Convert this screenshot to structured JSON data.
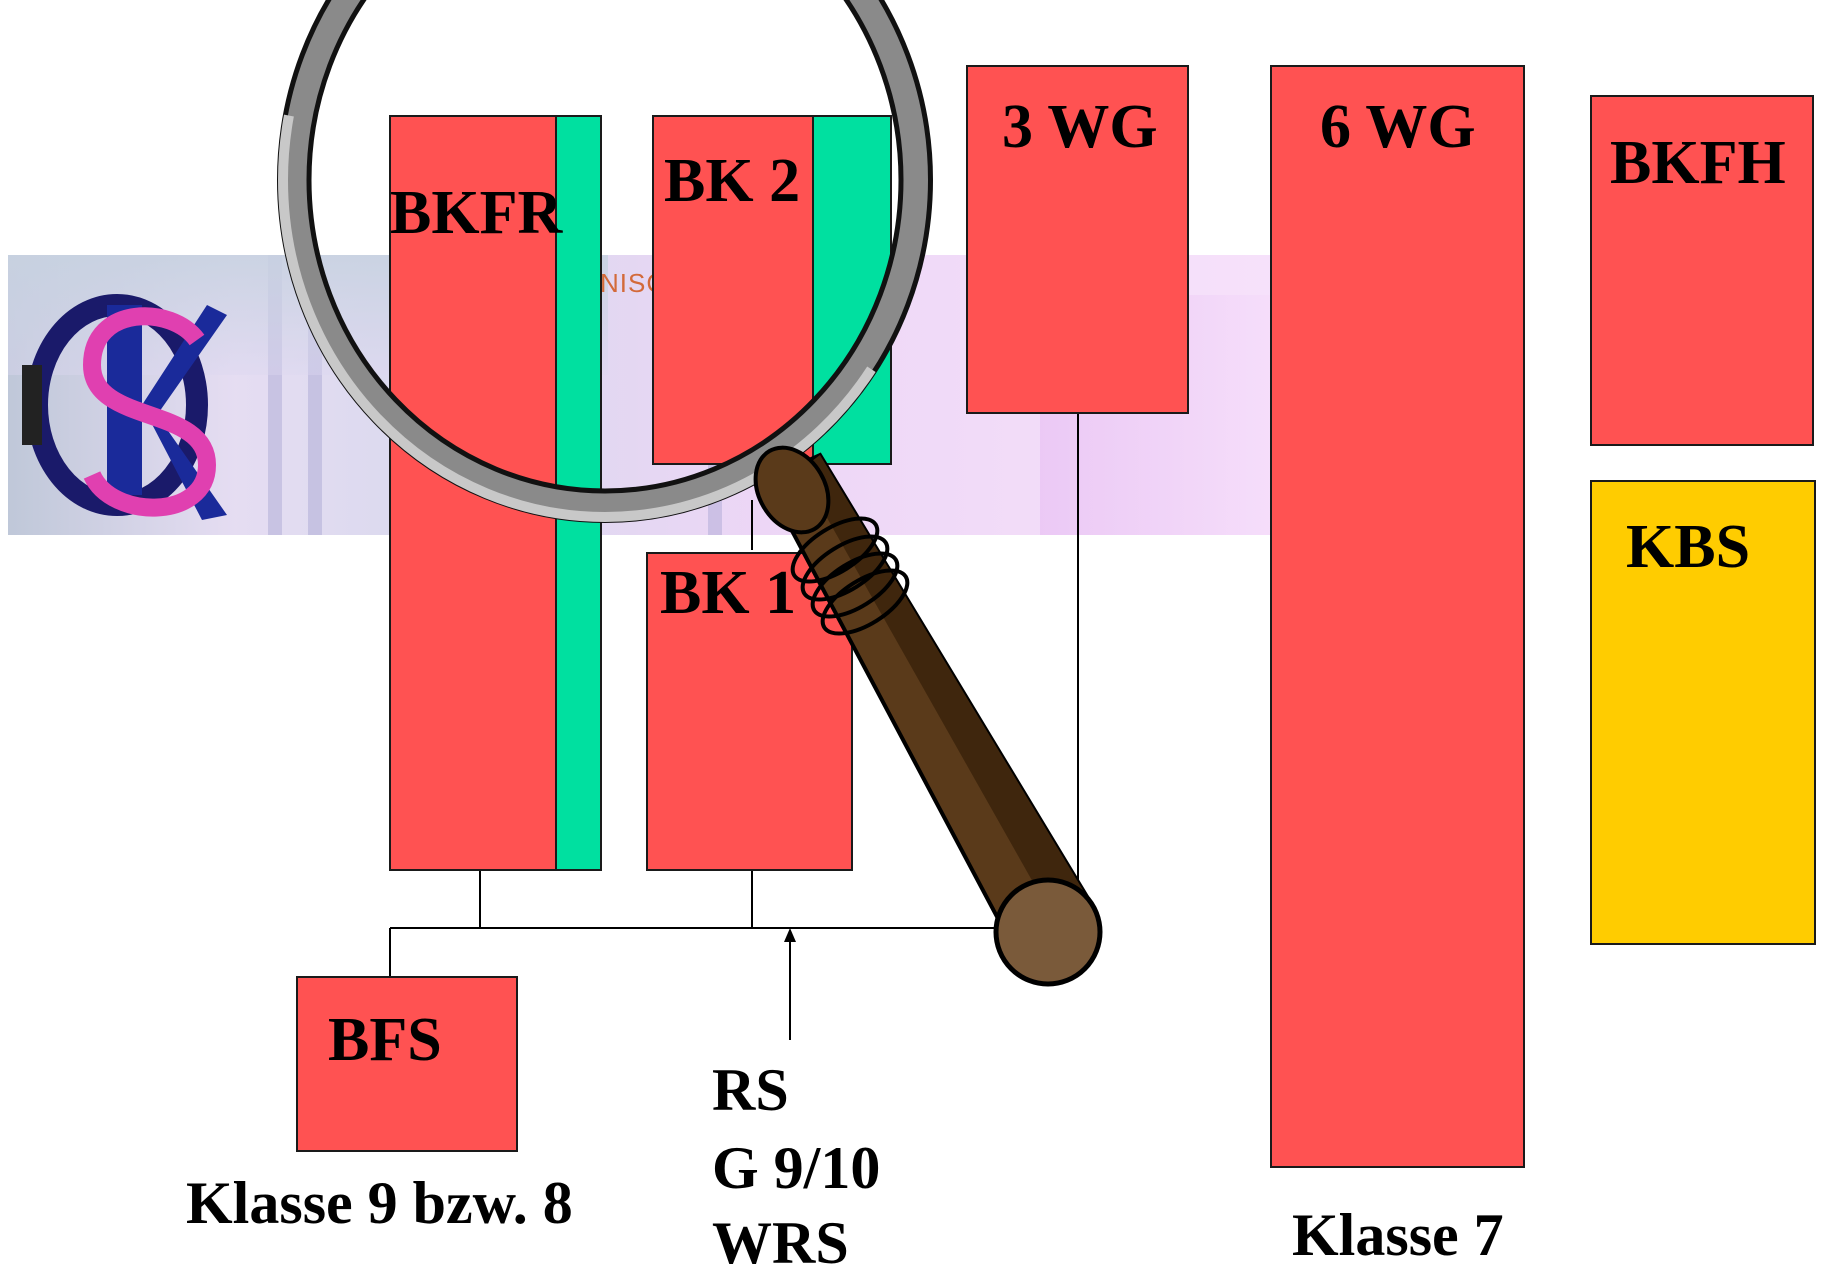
{
  "diagram": {
    "boxes": {
      "bkfr": "BKFR",
      "bk2": "BK 2",
      "wg3": "3 WG",
      "wg6": "6 WG",
      "bkfh": "BKFH",
      "kbs": "KBS",
      "bk1": "BK 1",
      "bfs": "BFS"
    },
    "bottom_labels": {
      "klasse9": "Klasse 9 bzw. 8",
      "rs": "RS",
      "g910": "G 9/10",
      "wrs": "WRS",
      "klasse7": "Klasse 7"
    },
    "banner_fragment": "NISC",
    "colors": {
      "red": "#ff5252",
      "green": "#00e0a0",
      "yellow": "#ffcc00",
      "handle": "#5a3a1a"
    }
  }
}
